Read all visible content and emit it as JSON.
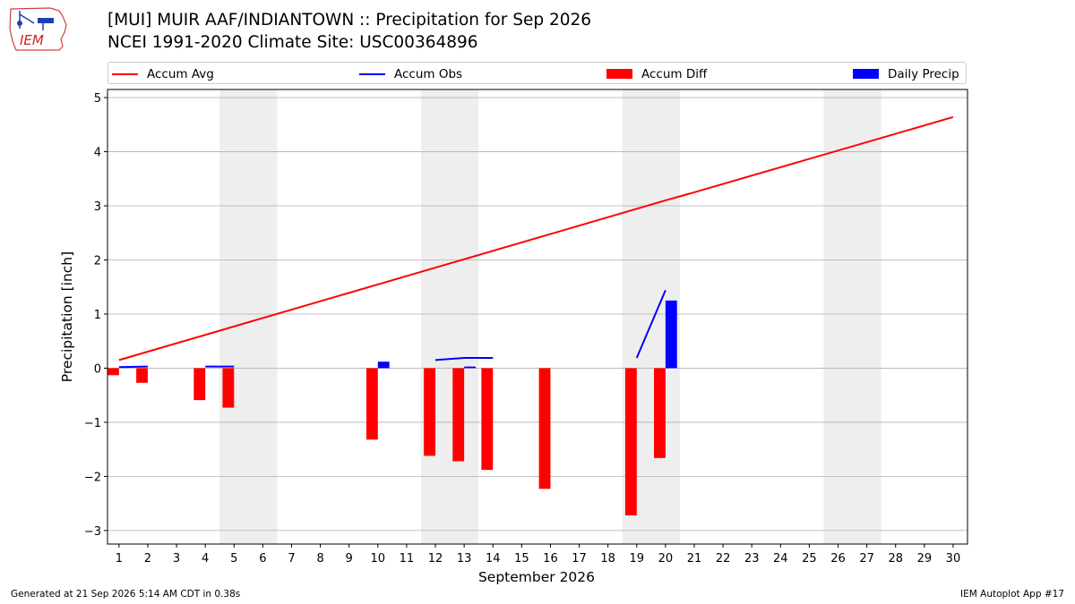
{
  "logo": {
    "text": "IEM"
  },
  "header": {
    "title": "[MUI] MUIR AAF/INDIANTOWN :: Precipitation for Sep 2026",
    "subtitle": "NCEI 1991-2020 Climate Site: USC00364896"
  },
  "legend": {
    "items": [
      {
        "label": "Accum Avg",
        "kind": "line",
        "color": "#ff0000"
      },
      {
        "label": "Accum Obs",
        "kind": "line",
        "color": "#0000ff"
      },
      {
        "label": "Accum Diff",
        "kind": "box",
        "color": "#ff0000"
      },
      {
        "label": "Daily Precip",
        "kind": "box",
        "color": "#0000ff"
      }
    ]
  },
  "chart_data": {
    "type": "bar",
    "xlabel": "September 2026",
    "ylabel": "Precipitation [inch]",
    "xlim": [
      0.6,
      30.5
    ],
    "ylim": [
      -3.25,
      5.15
    ],
    "x_ticks": [
      1,
      2,
      3,
      4,
      5,
      6,
      7,
      8,
      9,
      10,
      11,
      12,
      13,
      14,
      15,
      16,
      17,
      18,
      19,
      20,
      21,
      22,
      23,
      24,
      25,
      26,
      27,
      28,
      29,
      30
    ],
    "y_ticks": [
      -3,
      -2,
      -1,
      0,
      1,
      2,
      3,
      4,
      5
    ],
    "grid": "y",
    "legend_position": "top",
    "weekend_shading": [
      [
        4.5,
        6.5
      ],
      [
        11.5,
        13.5
      ],
      [
        18.5,
        20.5
      ],
      [
        25.5,
        27.5
      ]
    ],
    "colors": {
      "avg": "#ff0000",
      "obs": "#0000ff",
      "diff": "#ff0000",
      "daily": "#0000ff",
      "shade": "#eeeeee",
      "grid": "#b0b0b0"
    },
    "accum_avg": {
      "x": [
        1,
        20,
        21,
        30
      ],
      "y": [
        0.15,
        3.1,
        3.25,
        4.64
      ]
    },
    "accum_obs_segments": [
      {
        "x": [
          1,
          2
        ],
        "y": [
          0.02,
          0.03
        ]
      },
      {
        "x": [
          4,
          5
        ],
        "y": [
          0.03,
          0.03
        ]
      },
      {
        "x": [
          12,
          13,
          14
        ],
        "y": [
          0.15,
          0.19,
          0.19
        ]
      },
      {
        "x": [
          19,
          20
        ],
        "y": [
          0.19,
          1.44
        ]
      }
    ],
    "accum_diff": {
      "x": [
        1,
        2,
        4,
        5,
        10,
        12,
        13,
        14,
        16,
        19,
        20
      ],
      "y": [
        -0.13,
        -0.27,
        -0.59,
        -0.73,
        -1.32,
        -1.62,
        -1.72,
        -1.88,
        -2.23,
        -2.72,
        -1.66
      ]
    },
    "daily_precip": {
      "x": [
        10,
        13,
        20
      ],
      "y": [
        0.12,
        0.03,
        1.25
      ]
    }
  },
  "footer": {
    "left": "Generated at 21 Sep 2026 5:14 AM CDT in 0.38s",
    "right": "IEM Autoplot App #17"
  }
}
